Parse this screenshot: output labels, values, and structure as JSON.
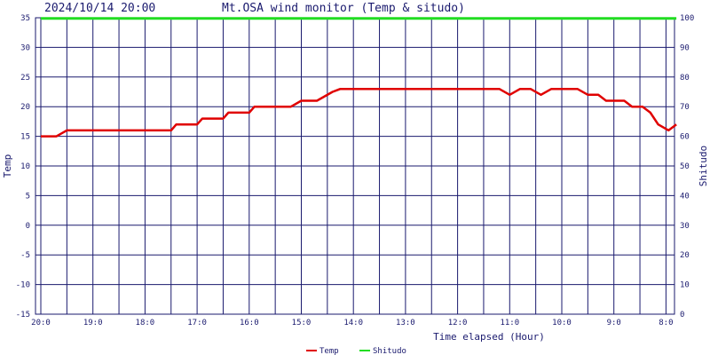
{
  "header": {
    "timestamp": "2024/10/14 20:00",
    "title": "Mt.OSA wind monitor (Temp & situdo)"
  },
  "chart_data": {
    "type": "line",
    "x_label": "Time elapsed (Hour)",
    "y_left_label": "Temp",
    "y_right_label": "Shitudo",
    "y_left_ticks": [
      "35",
      "30",
      "25",
      "20",
      "15",
      "10",
      "5",
      "0",
      "-5",
      "-10",
      "-15"
    ],
    "y_right_ticks": [
      "100",
      "90",
      "80",
      "70",
      "60",
      "50",
      "40",
      "30",
      "20",
      "10",
      "0"
    ],
    "x_ticks": [
      "20:0",
      "19:0",
      "18:0",
      "17:0",
      "16:0",
      "15:0",
      "14:0",
      "13:0",
      "12:0",
      "11:0",
      "10:0",
      "9:0",
      "8:0"
    ],
    "ylim_left": [
      -15,
      35
    ],
    "ylim_right": [
      0,
      100
    ],
    "x_hours_ago_range": [
      0,
      12
    ],
    "grid": true,
    "legend_position": "bottom",
    "series": [
      {
        "name": "Temp",
        "axis": "left",
        "color": "#e00000",
        "points": [
          [
            0,
            15
          ],
          [
            0.3,
            15
          ],
          [
            0.5,
            16
          ],
          [
            2.5,
            16
          ],
          [
            2.6,
            17
          ],
          [
            3.0,
            17
          ],
          [
            3.1,
            18
          ],
          [
            3.5,
            18
          ],
          [
            3.6,
            19
          ],
          [
            4.0,
            19
          ],
          [
            4.1,
            20
          ],
          [
            4.8,
            20
          ],
          [
            5.0,
            21
          ],
          [
            5.3,
            21
          ],
          [
            5.6,
            22.5
          ],
          [
            5.75,
            23
          ],
          [
            8.8,
            23
          ],
          [
            9.0,
            22
          ],
          [
            9.2,
            23
          ],
          [
            9.4,
            23
          ],
          [
            9.6,
            22
          ],
          [
            9.8,
            23
          ],
          [
            10.3,
            23
          ],
          [
            10.5,
            22
          ],
          [
            10.7,
            22
          ],
          [
            10.85,
            21
          ],
          [
            11.2,
            21
          ],
          [
            11.35,
            20
          ],
          [
            11.55,
            20
          ],
          [
            11.7,
            19
          ],
          [
            11.85,
            17
          ],
          [
            11.95,
            16.5
          ],
          [
            12.05,
            16
          ],
          [
            12.2,
            17
          ]
        ]
      },
      {
        "name": "Shitudo",
        "axis": "right",
        "color": "#22dd22",
        "points": [
          [
            0,
            99.8
          ],
          [
            12.2,
            99.8
          ]
        ]
      }
    ]
  }
}
